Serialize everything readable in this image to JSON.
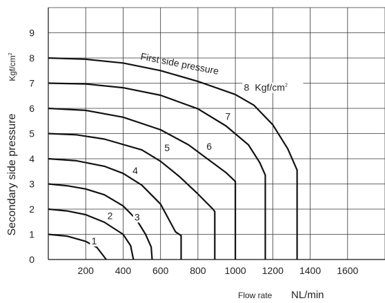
{
  "chart_data": {
    "type": "line",
    "ylabel": "Secondary side pressure",
    "yunit": "Kgf/cm",
    "yunit_sup": "2",
    "xlabel_small": "Flow rate",
    "xlabel_big": "NL/min",
    "xlim": [
      0,
      1800
    ],
    "ylim": [
      0,
      10
    ],
    "xticks": [
      200,
      400,
      600,
      800,
      1000,
      1200,
      1400,
      1600
    ],
    "yticks": [
      0,
      1,
      2,
      3,
      4,
      5,
      6,
      7,
      8,
      9
    ],
    "grid": true,
    "annotation": "First side pressure",
    "series_unit": "Kgf/cm",
    "series_unit_sup": "2",
    "series": [
      {
        "name": "1",
        "points": [
          [
            0,
            1.0
          ],
          [
            100,
            0.93
          ],
          [
            200,
            0.72
          ],
          [
            260,
            0.48
          ],
          [
            310,
            0.0
          ]
        ]
      },
      {
        "name": "2",
        "points": [
          [
            0,
            2.0
          ],
          [
            100,
            1.93
          ],
          [
            200,
            1.78
          ],
          [
            300,
            1.48
          ],
          [
            400,
            1.0
          ],
          [
            440,
            0.55
          ],
          [
            455,
            0.0
          ]
        ]
      },
      {
        "name": "3",
        "points": [
          [
            0,
            3.0
          ],
          [
            100,
            2.93
          ],
          [
            200,
            2.8
          ],
          [
            300,
            2.57
          ],
          [
            400,
            2.13
          ],
          [
            470,
            1.6
          ],
          [
            520,
            1.0
          ],
          [
            550,
            0.5
          ],
          [
            555,
            0.0
          ]
        ]
      },
      {
        "name": "4",
        "points": [
          [
            0,
            4.0
          ],
          [
            150,
            3.92
          ],
          [
            300,
            3.7
          ],
          [
            400,
            3.42
          ],
          [
            500,
            2.95
          ],
          [
            600,
            2.2
          ],
          [
            680,
            1.1
          ],
          [
            710,
            0.95
          ],
          [
            710,
            0.0
          ]
        ]
      },
      {
        "name": "5",
        "points": [
          [
            0,
            5.0
          ],
          [
            150,
            4.95
          ],
          [
            300,
            4.78
          ],
          [
            500,
            4.35
          ],
          [
            600,
            3.9
          ],
          [
            700,
            3.3
          ],
          [
            800,
            2.6
          ],
          [
            880,
            2.0
          ],
          [
            890,
            1.9
          ],
          [
            890,
            0.0
          ]
        ]
      },
      {
        "name": "6",
        "points": [
          [
            0,
            6.0
          ],
          [
            200,
            5.92
          ],
          [
            400,
            5.65
          ],
          [
            600,
            5.15
          ],
          [
            750,
            4.55
          ],
          [
            850,
            4.0
          ],
          [
            950,
            3.45
          ],
          [
            1000,
            3.1
          ],
          [
            1000,
            0.0
          ]
        ]
      },
      {
        "name": "7",
        "points": [
          [
            0,
            7.0
          ],
          [
            200,
            6.97
          ],
          [
            400,
            6.82
          ],
          [
            600,
            6.52
          ],
          [
            800,
            5.98
          ],
          [
            950,
            5.3
          ],
          [
            1070,
            4.55
          ],
          [
            1130,
            3.85
          ],
          [
            1160,
            3.35
          ],
          [
            1160,
            0.0
          ]
        ]
      },
      {
        "name": "8",
        "points": [
          [
            0,
            8.0
          ],
          [
            200,
            7.95
          ],
          [
            400,
            7.8
          ],
          [
            600,
            7.5
          ],
          [
            800,
            7.07
          ],
          [
            1000,
            6.55
          ],
          [
            1100,
            6.12
          ],
          [
            1200,
            5.35
          ],
          [
            1280,
            4.4
          ],
          [
            1330,
            3.55
          ],
          [
            1330,
            0.0
          ]
        ]
      }
    ],
    "label_positions": [
      {
        "name": "1",
        "x": 245,
        "y": 0.6
      },
      {
        "name": "2",
        "x": 330,
        "y": 1.6
      },
      {
        "name": "3",
        "x": 475,
        "y": 1.55
      },
      {
        "name": "4",
        "x": 465,
        "y": 3.4
      },
      {
        "name": "5",
        "x": 635,
        "y": 4.3
      },
      {
        "name": "6",
        "x": 860,
        "y": 4.35
      },
      {
        "name": "7",
        "x": 960,
        "y": 5.55
      },
      {
        "name": "8",
        "x": 1060,
        "y": 6.7
      }
    ]
  }
}
